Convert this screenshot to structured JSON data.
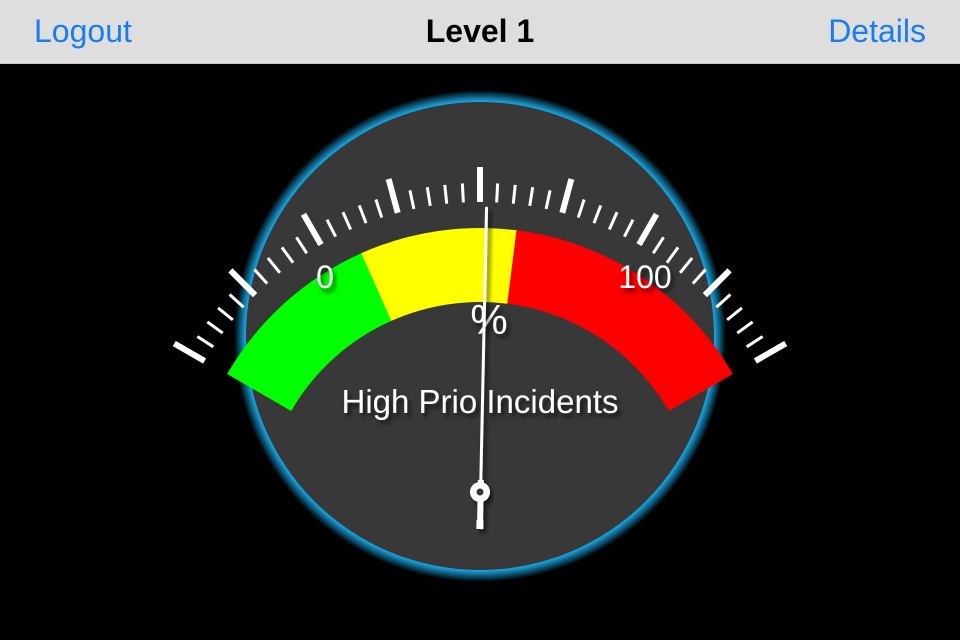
{
  "navbar": {
    "title": "Level 1",
    "left_button": "Logout",
    "right_button": "Details"
  },
  "gauge": {
    "label": "High Prio Incidents",
    "unit": "%",
    "min_label": "0",
    "max_label": "100",
    "min": 0,
    "max": 100,
    "value": 51,
    "zones": [
      {
        "from": 0,
        "to": 30,
        "color": "#00ff00"
      },
      {
        "from": 30,
        "to": 56,
        "color": "#ffff00"
      },
      {
        "from": 56,
        "to": 100,
        "color": "#ff0000"
      }
    ],
    "colors": {
      "face": "#383838",
      "glow": "#1ab0f0",
      "ticks": "#ffffff",
      "needle": "#ffffff"
    }
  }
}
